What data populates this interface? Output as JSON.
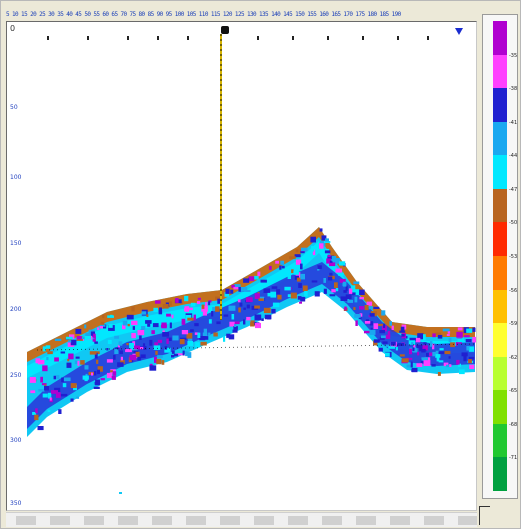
{
  "header": {
    "strip_text": "5 10 15 20 25 30 35 40 45 50 55 60 65 70 75 80 85 90 95 100 105 110 115 120 125 130 135 140 145 150 155 160 165 170 175 180 185 190"
  },
  "axis": {
    "corner_label": "0",
    "depth_labels": [
      "50",
      "100",
      "150",
      "200",
      "250",
      "300",
      "350"
    ]
  },
  "colors": {
    "background": "#ffffff",
    "cursor_line": "#d4b300",
    "palette": [
      "#b000d0",
      "#ff40ff",
      "#2020d0",
      "#1aa8f0",
      "#00e8ff",
      "#b86420",
      "#ff2a00",
      "#ff7a00",
      "#ffc000",
      "#ffff30",
      "#b8ff30",
      "#80e000",
      "#20c830",
      "#00a040"
    ]
  },
  "colorbar": {
    "labels": [
      "-35",
      "-38",
      "-41",
      "-44",
      "-47",
      "-50",
      "-53",
      "-56",
      "-59",
      "-62",
      "-65",
      "-68",
      "-71"
    ]
  },
  "icons": {
    "cursor": "ping-cursor-icon",
    "marker": "event-marker-icon"
  }
}
